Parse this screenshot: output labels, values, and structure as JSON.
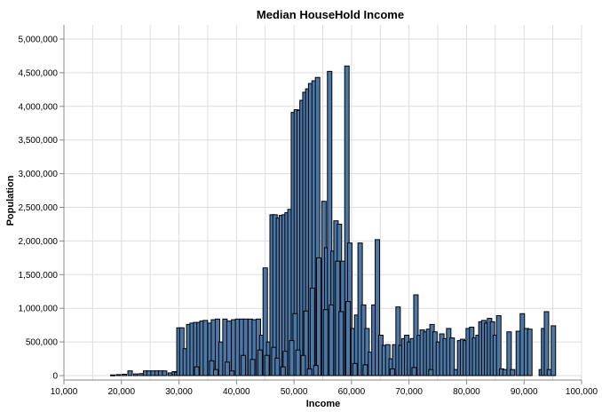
{
  "chart_data": {
    "type": "bar",
    "title": "Median HouseHold Income",
    "xlabel": "Income",
    "ylabel": "Population",
    "xlim": [
      10000,
      100000
    ],
    "ylim": [
      0,
      5000000
    ],
    "x_ticks": [
      10000,
      20000,
      30000,
      40000,
      50000,
      60000,
      70000,
      80000,
      90000,
      100000
    ],
    "x_tick_labels": [
      "10,000",
      "20,000",
      "30,000",
      "40,000",
      "50,000",
      "60,000",
      "70,000",
      "80,000",
      "90,000",
      "100,000"
    ],
    "y_ticks": [
      0,
      500000,
      1000000,
      1500000,
      2000000,
      2500000,
      3000000,
      3500000,
      4000000,
      4500000,
      5000000
    ],
    "y_tick_labels": [
      "0",
      "500,000",
      "1,000,000",
      "1,500,000",
      "2,000,000",
      "2,500,000",
      "3,000,000",
      "3,500,000",
      "4,000,000",
      "4,500,000",
      "5,000,000"
    ],
    "grid": true,
    "bar_color": "#4c78a8",
    "bar_stroke": "#000000",
    "points": [
      {
        "x": 18500,
        "y": 10000
      },
      {
        "x": 19500,
        "y": 15000
      },
      {
        "x": 20500,
        "y": 20000
      },
      {
        "x": 21500,
        "y": 70000
      },
      {
        "x": 22500,
        "y": 25000
      },
      {
        "x": 23500,
        "y": 30000
      },
      {
        "x": 24200,
        "y": 70000
      },
      {
        "x": 24800,
        "y": 70000
      },
      {
        "x": 25500,
        "y": 70000
      },
      {
        "x": 26200,
        "y": 70000
      },
      {
        "x": 26800,
        "y": 70000
      },
      {
        "x": 27500,
        "y": 70000
      },
      {
        "x": 28500,
        "y": 40000
      },
      {
        "x": 29200,
        "y": 60000
      },
      {
        "x": 29600,
        "y": 50000
      },
      {
        "x": 30000,
        "y": 710000
      },
      {
        "x": 30500,
        "y": 710000
      },
      {
        "x": 31100,
        "y": 400000
      },
      {
        "x": 31700,
        "y": 760000
      },
      {
        "x": 32300,
        "y": 780000
      },
      {
        "x": 32900,
        "y": 790000
      },
      {
        "x": 33500,
        "y": 790000
      },
      {
        "x": 34000,
        "y": 810000
      },
      {
        "x": 34600,
        "y": 820000
      },
      {
        "x": 35400,
        "y": 780000
      },
      {
        "x": 36000,
        "y": 830000
      },
      {
        "x": 36700,
        "y": 840000
      },
      {
        "x": 37300,
        "y": 500000
      },
      {
        "x": 38000,
        "y": 840000
      },
      {
        "x": 38700,
        "y": 810000
      },
      {
        "x": 39500,
        "y": 830000
      },
      {
        "x": 40200,
        "y": 840000
      },
      {
        "x": 40900,
        "y": 840000
      },
      {
        "x": 41600,
        "y": 840000
      },
      {
        "x": 42400,
        "y": 840000
      },
      {
        "x": 43100,
        "y": 830000
      },
      {
        "x": 43800,
        "y": 840000
      },
      {
        "x": 44400,
        "y": 600000
      },
      {
        "x": 45000,
        "y": 1600000
      },
      {
        "x": 45600,
        "y": 500000
      },
      {
        "x": 46200,
        "y": 2390000
      },
      {
        "x": 46700,
        "y": 2390000
      },
      {
        "x": 47300,
        "y": 2340000
      },
      {
        "x": 47800,
        "y": 2380000
      },
      {
        "x": 48300,
        "y": 2390000
      },
      {
        "x": 48800,
        "y": 2420000
      },
      {
        "x": 49300,
        "y": 2470000
      },
      {
        "x": 49900,
        "y": 3910000
      },
      {
        "x": 50400,
        "y": 3950000
      },
      {
        "x": 50900,
        "y": 3940000
      },
      {
        "x": 51400,
        "y": 4090000
      },
      {
        "x": 51900,
        "y": 4210000
      },
      {
        "x": 52400,
        "y": 4260000
      },
      {
        "x": 52900,
        "y": 4340000
      },
      {
        "x": 53500,
        "y": 4380000
      },
      {
        "x": 54100,
        "y": 4430000
      },
      {
        "x": 54600,
        "y": 1200000
      },
      {
        "x": 55200,
        "y": 2590000
      },
      {
        "x": 55700,
        "y": 1900000
      },
      {
        "x": 56200,
        "y": 4520000
      },
      {
        "x": 56800,
        "y": 1850000
      },
      {
        "x": 57300,
        "y": 2300000
      },
      {
        "x": 57900,
        "y": 2250000
      },
      {
        "x": 58500,
        "y": 1700000
      },
      {
        "x": 59200,
        "y": 4600000
      },
      {
        "x": 59700,
        "y": 1970000
      },
      {
        "x": 60300,
        "y": 700000
      },
      {
        "x": 60900,
        "y": 900000
      },
      {
        "x": 61500,
        "y": 1970000
      },
      {
        "x": 62100,
        "y": 1050000
      },
      {
        "x": 62700,
        "y": 700000
      },
      {
        "x": 63300,
        "y": 350000
      },
      {
        "x": 63900,
        "y": 1050000
      },
      {
        "x": 64500,
        "y": 2020000
      },
      {
        "x": 65100,
        "y": 600000
      },
      {
        "x": 65700,
        "y": 450000
      },
      {
        "x": 66300,
        "y": 460000
      },
      {
        "x": 66900,
        "y": 250000
      },
      {
        "x": 67500,
        "y": 460000
      },
      {
        "x": 68100,
        "y": 1020000
      },
      {
        "x": 68600,
        "y": 450000
      },
      {
        "x": 69100,
        "y": 550000
      },
      {
        "x": 69600,
        "y": 600000
      },
      {
        "x": 70100,
        "y": 500000
      },
      {
        "x": 70600,
        "y": 550000
      },
      {
        "x": 71200,
        "y": 1200000
      },
      {
        "x": 71800,
        "y": 600000
      },
      {
        "x": 72300,
        "y": 680000
      },
      {
        "x": 72900,
        "y": 650000
      },
      {
        "x": 73400,
        "y": 690000
      },
      {
        "x": 74000,
        "y": 760000
      },
      {
        "x": 74500,
        "y": 650000
      },
      {
        "x": 75100,
        "y": 500000
      },
      {
        "x": 75700,
        "y": 620000
      },
      {
        "x": 76300,
        "y": 550000
      },
      {
        "x": 76900,
        "y": 700000
      },
      {
        "x": 77500,
        "y": 560000
      },
      {
        "x": 78200,
        "y": 90000
      },
      {
        "x": 78800,
        "y": 520000
      },
      {
        "x": 79300,
        "y": 540000
      },
      {
        "x": 79800,
        "y": 520000
      },
      {
        "x": 80300,
        "y": 700000
      },
      {
        "x": 80900,
        "y": 720000
      },
      {
        "x": 81400,
        "y": 560000
      },
      {
        "x": 82000,
        "y": 600000
      },
      {
        "x": 82500,
        "y": 800000
      },
      {
        "x": 83000,
        "y": 820000
      },
      {
        "x": 83500,
        "y": 780000
      },
      {
        "x": 84000,
        "y": 850000
      },
      {
        "x": 84500,
        "y": 800000
      },
      {
        "x": 85000,
        "y": 600000
      },
      {
        "x": 85600,
        "y": 890000
      },
      {
        "x": 86100,
        "y": 100000
      },
      {
        "x": 86700,
        "y": 90000
      },
      {
        "x": 87400,
        "y": 650000
      },
      {
        "x": 88000,
        "y": 90000
      },
      {
        "x": 89000,
        "y": 660000
      },
      {
        "x": 89700,
        "y": 920000
      },
      {
        "x": 90400,
        "y": 700000
      },
      {
        "x": 91000,
        "y": 690000
      },
      {
        "x": 93000,
        "y": 90000
      },
      {
        "x": 93400,
        "y": 700000
      },
      {
        "x": 93900,
        "y": 950000
      },
      {
        "x": 94400,
        "y": 90000
      },
      {
        "x": 95100,
        "y": 740000
      },
      {
        "x": 44100,
        "y": 380000
      },
      {
        "x": 46500,
        "y": 420000
      },
      {
        "x": 48500,
        "y": 360000
      },
      {
        "x": 50200,
        "y": 920000
      },
      {
        "x": 52100,
        "y": 960000
      },
      {
        "x": 53200,
        "y": 1300000
      },
      {
        "x": 54300,
        "y": 1750000
      },
      {
        "x": 55500,
        "y": 980000
      },
      {
        "x": 56500,
        "y": 1050000
      },
      {
        "x": 57600,
        "y": 1700000
      },
      {
        "x": 58200,
        "y": 950000
      },
      {
        "x": 59400,
        "y": 1100000
      },
      {
        "x": 49600,
        "y": 520000
      },
      {
        "x": 50700,
        "y": 380000
      },
      {
        "x": 51600,
        "y": 300000
      },
      {
        "x": 47100,
        "y": 260000
      },
      {
        "x": 41200,
        "y": 300000
      },
      {
        "x": 38400,
        "y": 200000
      },
      {
        "x": 35700,
        "y": 220000
      },
      {
        "x": 33100,
        "y": 130000
      },
      {
        "x": 42800,
        "y": 240000
      },
      {
        "x": 45300,
        "y": 300000
      },
      {
        "x": 53800,
        "y": 150000
      },
      {
        "x": 60600,
        "y": 180000
      },
      {
        "x": 62400,
        "y": 160000
      },
      {
        "x": 67100,
        "y": 100000
      },
      {
        "x": 70900,
        "y": 120000
      },
      {
        "x": 73800,
        "y": 90000
      },
      {
        "x": 52700,
        "y": 100000
      },
      {
        "x": 48100,
        "y": 130000
      },
      {
        "x": 39200,
        "y": 70000
      },
      {
        "x": 36400,
        "y": 90000
      }
    ]
  }
}
